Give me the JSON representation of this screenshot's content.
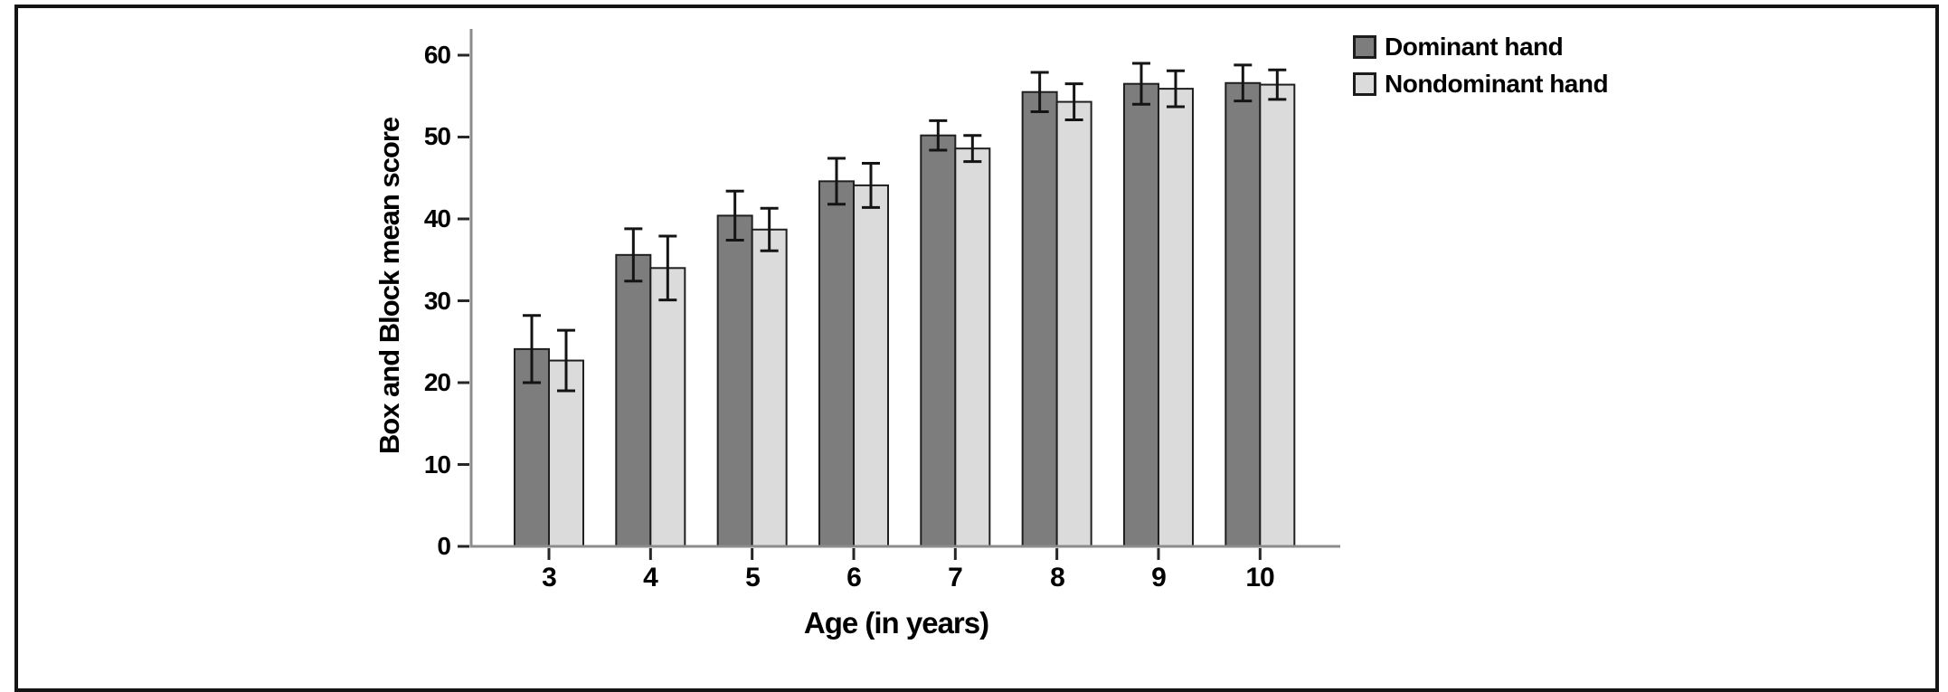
{
  "figure": {
    "background": "#ffffff",
    "frame_color": "#141414"
  },
  "chart_data": {
    "type": "bar",
    "subtype": "grouped-vertical-with-error-bars",
    "title": "",
    "xlabel": "Age (in years)",
    "ylabel": "Box and Block mean score",
    "categories": [
      "3",
      "4",
      "5",
      "6",
      "7",
      "8",
      "9",
      "10"
    ],
    "yticks": [
      "0",
      "10",
      "20",
      "30",
      "40",
      "50",
      "60"
    ],
    "ylim": [
      0,
      60
    ],
    "grid": false,
    "legend_position": "top-right",
    "error_bars": "plus-minus, capped whiskers centered on bar top",
    "axis_color": "#8c8c8c",
    "tick_color": "#262626",
    "error_bar_color": "#141414",
    "series": [
      {
        "name": "Dominant hand",
        "color": "#7d7d7d",
        "border": "#1f1f1f",
        "values": [
          24.1,
          35.6,
          40.4,
          44.6,
          50.2,
          55.5,
          56.5,
          56.6
        ],
        "errors": [
          4.1,
          3.2,
          3.0,
          2.8,
          1.8,
          2.4,
          2.5,
          2.2
        ]
      },
      {
        "name": "Nondominant hand",
        "color": "#dbdbdb",
        "border": "#1f1f1f",
        "values": [
          22.7,
          34.0,
          38.7,
          44.1,
          48.6,
          54.3,
          55.9,
          56.4
        ],
        "errors": [
          3.7,
          3.9,
          2.6,
          2.7,
          1.6,
          2.2,
          2.2,
          1.8
        ]
      }
    ]
  }
}
